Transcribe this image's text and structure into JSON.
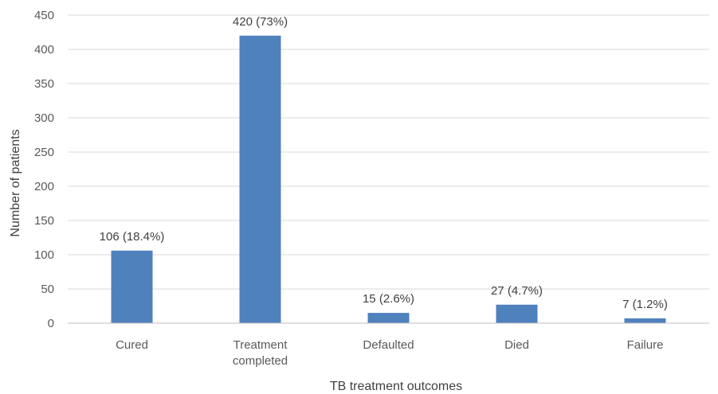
{
  "chart_data": {
    "type": "bar",
    "title": "",
    "xlabel": "TB treatment outcomes",
    "ylabel": "Number of patients",
    "ylim": [
      0,
      450
    ],
    "ytick_step": 50,
    "grid": true,
    "colors": {
      "bar": "#4f81bd",
      "grid": "#d9d9d9",
      "axis": "#bfbfbf"
    },
    "categories": [
      [
        "Cured"
      ],
      [
        "Treatment",
        "completed"
      ],
      [
        "Defaulted"
      ],
      [
        "Died"
      ],
      [
        "Failure"
      ]
    ],
    "values": [
      106,
      420,
      15,
      27,
      7
    ],
    "data_labels": [
      "106 (18.4%)",
      "420 (73%)",
      "15 (2.6%)",
      "27 (4.7%)",
      "7 (1.2%)"
    ]
  }
}
